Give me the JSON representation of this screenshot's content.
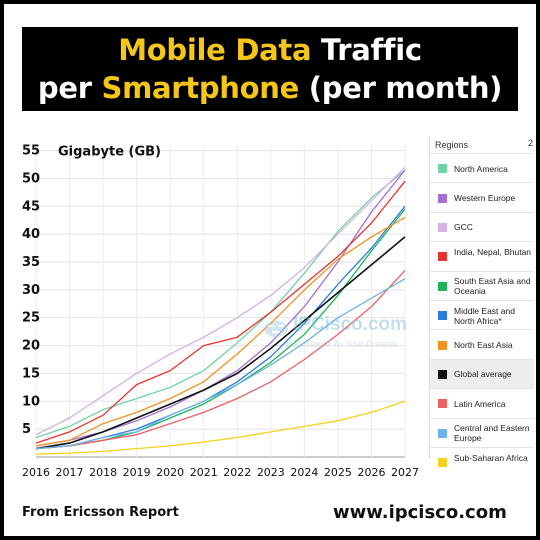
{
  "title": {
    "line1_highlight": "Mobile Data",
    "line1_rest": " Traffic",
    "line2_pre": "per ",
    "line2_highlight": "Smartphone",
    "line2_rest": " (per month)"
  },
  "colors": {
    "banner_bg": "#000000",
    "highlight": "#f5c518",
    "title_text": "#ffffff"
  },
  "watermark": {
    "name": "IPCisco.com",
    "tagline": "Best Route To Your Dreams",
    "icon": "router-logo-icon"
  },
  "footer": {
    "source": "From Ericsson Report",
    "site": "www.ipcisco.com"
  },
  "legend": {
    "title": "Regions",
    "more": "2",
    "items": [
      {
        "label": "North America",
        "color": "#6fd3a3"
      },
      {
        "label": "Western Europe",
        "color": "#a56fd0"
      },
      {
        "label": "GCC",
        "color": "#d6b0e6"
      },
      {
        "label": "India, Nepal, Bhutan",
        "color": "#e8322e"
      },
      {
        "label": "South East Asia and Oceania",
        "color": "#20b25a"
      },
      {
        "label": "Middle East and North Africa*",
        "color": "#2a7de0"
      },
      {
        "label": "North East Asia",
        "color": "#f2931f"
      },
      {
        "label": "Global average",
        "color": "#111111"
      },
      {
        "label": "Latin America",
        "color": "#ef5f62"
      },
      {
        "label": "Central and Eastern Europe",
        "color": "#6fb3e8"
      },
      {
        "label": "Sub-Saharan Africa",
        "color": "#f5d11b"
      }
    ]
  },
  "chart_data": {
    "type": "line",
    "ylabel": "Gigabyte (GB)",
    "x": [
      2016,
      2017,
      2018,
      2019,
      2020,
      2021,
      2022,
      2023,
      2024,
      2025,
      2026,
      2027
    ],
    "y_ticks": [
      5,
      10,
      15,
      20,
      25,
      30,
      35,
      40,
      45,
      50,
      55
    ],
    "ylim": [
      0,
      56
    ],
    "grid": true,
    "series": [
      {
        "name": "North America",
        "color": "#6fd3a3",
        "values": [
          3.5,
          5.5,
          8.5,
          10.5,
          12.5,
          15.5,
          20.5,
          26,
          33,
          40.5,
          46.5,
          51.5
        ]
      },
      {
        "name": "Western Europe",
        "color": "#a56fd0",
        "values": [
          2,
          3,
          4.5,
          6.5,
          9,
          12,
          15.5,
          20.5,
          27,
          35,
          44,
          51.5
        ]
      },
      {
        "name": "GCC",
        "color": "#d6b0e6",
        "values": [
          4,
          7,
          11,
          15,
          18.5,
          21.5,
          25,
          29,
          34,
          40,
          46,
          52
        ]
      },
      {
        "name": "India, Nepal, Bhutan",
        "color": "#e8322e",
        "values": [
          2.5,
          4.5,
          7.5,
          13,
          15.5,
          20,
          21.5,
          26,
          31,
          36,
          42,
          49.5
        ]
      },
      {
        "name": "South East Asia and Oceania",
        "color": "#20b25a",
        "values": [
          1.5,
          2,
          3,
          4.5,
          7,
          9.5,
          13,
          17,
          22,
          29,
          37,
          44.5
        ]
      },
      {
        "name": "Middle East and North Africa*",
        "color": "#2a7de0",
        "values": [
          1.5,
          2,
          3.5,
          5,
          7.5,
          10,
          13.5,
          18,
          24,
          31,
          37.5,
          45
        ]
      },
      {
        "name": "North East Asia",
        "color": "#f2931f",
        "values": [
          2,
          3,
          6,
          8,
          10.5,
          13.5,
          18.5,
          24,
          30,
          35.5,
          39.5,
          43
        ]
      },
      {
        "name": "Global average",
        "color": "#111111",
        "values": [
          1.5,
          2.5,
          4.5,
          7,
          9.5,
          12,
          15,
          19.5,
          24.5,
          29.5,
          34.5,
          39.5
        ]
      },
      {
        "name": "Latin America",
        "color": "#ef5f62",
        "values": [
          1.5,
          2,
          3,
          4,
          6,
          8,
          10.5,
          13.5,
          17.5,
          22,
          27,
          33.5
        ]
      },
      {
        "name": "Central and Eastern Europe",
        "color": "#6fb3e8",
        "values": [
          1.5,
          2,
          3.5,
          4.5,
          7.5,
          10,
          13,
          16.5,
          20.5,
          25,
          28.5,
          32
        ]
      },
      {
        "name": "Sub-Saharan Africa",
        "color": "#f5d11b",
        "values": [
          0.5,
          0.7,
          1,
          1.5,
          2,
          2.7,
          3.5,
          4.5,
          5.5,
          6.5,
          8,
          10
        ]
      }
    ]
  }
}
